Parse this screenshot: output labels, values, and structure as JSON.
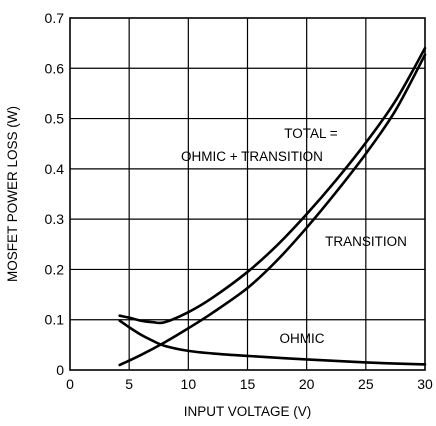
{
  "chart_data": {
    "type": "line",
    "title": "",
    "xlabel": "INPUT VOLTAGE (V)",
    "ylabel": "MOSFET POWER LOSS (W)",
    "xlim": [
      0,
      30
    ],
    "ylim": [
      0,
      0.7
    ],
    "xticks": [
      "0",
      "5",
      "10",
      "15",
      "20",
      "25",
      "30"
    ],
    "yticks": [
      "0",
      "0.1",
      "0.2",
      "0.3",
      "0.4",
      "0.5",
      "0.6",
      "0.7"
    ],
    "grid": true,
    "series": [
      {
        "name": "TOTAL = OHMIC + TRANSITION",
        "x": [
          4.2,
          5,
          6,
          7,
          8,
          10,
          12,
          15,
          17.5,
          20,
          22.5,
          25,
          27.5,
          30
        ],
        "y": [
          0.108,
          0.104,
          0.098,
          0.095,
          0.095,
          0.115,
          0.143,
          0.195,
          0.248,
          0.31,
          0.378,
          0.452,
          0.535,
          0.64
        ]
      },
      {
        "name": "TRANSITION",
        "x": [
          4.2,
          6,
          8,
          10,
          12,
          15,
          17.5,
          20,
          22.5,
          25,
          27.5,
          30
        ],
        "y": [
          0.01,
          0.03,
          0.055,
          0.083,
          0.113,
          0.163,
          0.218,
          0.283,
          0.354,
          0.43,
          0.516,
          0.627
        ]
      },
      {
        "name": "OHMIC",
        "x": [
          4.2,
          5,
          6,
          7,
          8,
          10,
          12,
          15,
          20,
          25,
          30
        ],
        "y": [
          0.098,
          0.085,
          0.07,
          0.058,
          0.048,
          0.038,
          0.033,
          0.028,
          0.021,
          0.015,
          0.011
        ]
      }
    ],
    "annotations": [
      {
        "line1": "TOTAL =",
        "line2": "OHMIC + TRANSITION",
        "target": "TOTAL = OHMIC + TRANSITION"
      },
      {
        "line1": "TRANSITION",
        "target": "TRANSITION"
      },
      {
        "line1": "OHMIC",
        "target": "OHMIC"
      }
    ]
  }
}
